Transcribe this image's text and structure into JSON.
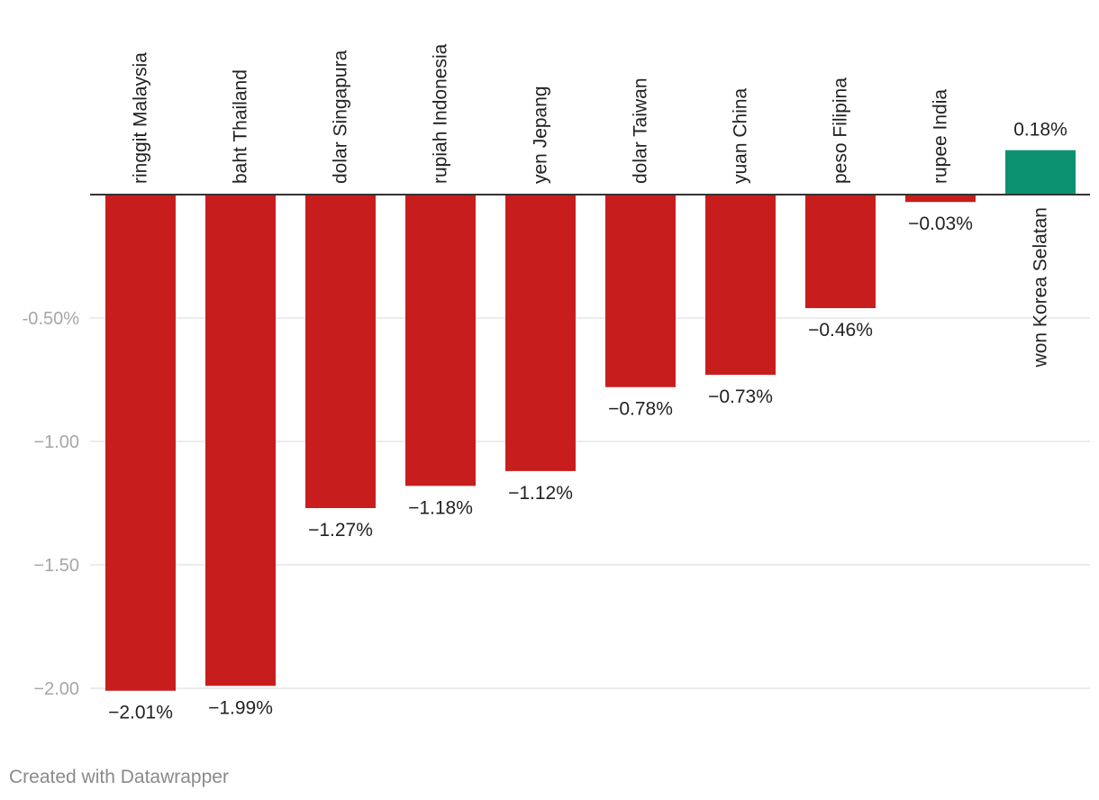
{
  "chart_data": {
    "type": "bar",
    "categories": [
      "ringgit Malaysia",
      "baht Thailand",
      "dolar Singapura",
      "rupiah Indonesia",
      "yen Jepang",
      "dolar Taiwan",
      "yuan China",
      "peso Filipina",
      "rupee India",
      "won Korea Selatan"
    ],
    "values": [
      -2.01,
      -1.99,
      -1.27,
      -1.18,
      -1.12,
      -0.78,
      -0.73,
      -0.46,
      -0.03,
      0.18
    ],
    "value_labels": [
      "−2.01%",
      "−1.99%",
      "−1.27%",
      "−1.18%",
      "−1.12%",
      "−0.78%",
      "−0.73%",
      "−0.46%",
      "−0.03%",
      "0.18%"
    ],
    "y_ticks": [
      {
        "value": -0.5,
        "label": "-0.50%"
      },
      {
        "value": -1.0,
        "label": "−1.00"
      },
      {
        "value": -1.5,
        "label": "−1.50"
      },
      {
        "value": -2.0,
        "label": "−2.00"
      }
    ],
    "ylim": [
      -2.01,
      0.18
    ],
    "grid": true,
    "legend": "none",
    "colors": {
      "negative": "#c71e1d",
      "positive": "#0d9271",
      "baseline": "#333333",
      "grid": "#e6e6e6",
      "tick_label": "#a6a6a6",
      "value_label": "#222222",
      "category_label": "#222222"
    }
  },
  "footer": {
    "credit": "Created with Datawrapper"
  }
}
